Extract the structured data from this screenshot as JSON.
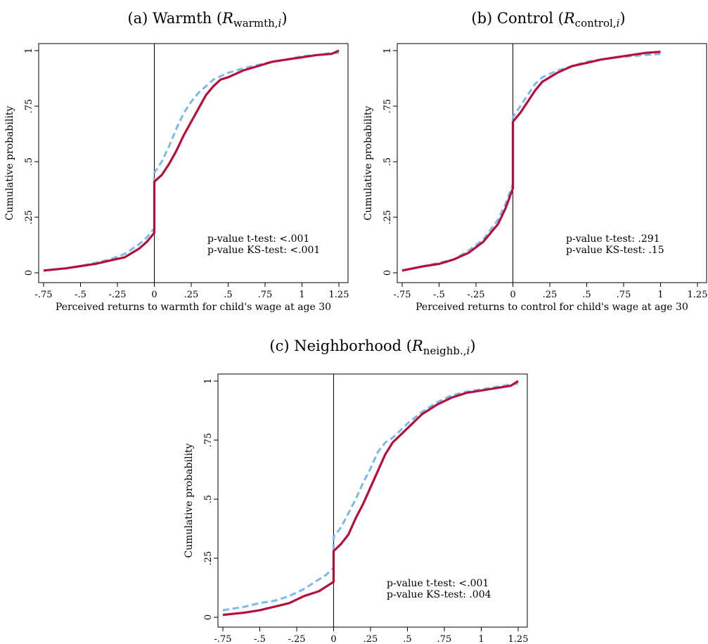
{
  "colors": {
    "treatment": "#b5103c",
    "control": "#7db9ee",
    "axis": "#000000"
  },
  "panels": [
    {
      "title": {
        "prefix": "(a) Warmth (",
        "sym": "R",
        "sub": "warmth,",
        "subi": "i",
        "suffix": ")"
      },
      "stats": [
        "p-value t-test: <.001",
        "p-value KS-test: <.001"
      ]
    },
    {
      "title": {
        "prefix": "(b) Control (",
        "sym": "R",
        "sub": "control,",
        "subi": "i",
        "suffix": ")"
      },
      "stats": [
        "p-value t-test: .291",
        "p-value KS-test: .15"
      ]
    },
    {
      "title": {
        "prefix": "(c) Neighborhood (",
        "sym": "R",
        "sub": "neighb.,",
        "subi": "i",
        "suffix": ")"
      },
      "stats": [
        "p-value t-test: <.001",
        "p-value KS-test: .004"
      ]
    }
  ],
  "chart_data": [
    {
      "type": "line",
      "xlabel": "Perceived returns to warmth for child's wage at age 30",
      "ylabel": "Cumulative probability",
      "xlim": [
        -0.75,
        1.25
      ],
      "ylim": [
        0,
        1
      ],
      "xticks": [
        -0.75,
        -0.5,
        -0.25,
        0,
        0.25,
        0.5,
        0.75,
        1,
        1.25
      ],
      "xtick_labels": [
        "-.75",
        "-.5",
        "-.25",
        "0",
        ".25",
        ".5",
        ".75",
        "1",
        "1.25"
      ],
      "yticks": [
        0,
        0.25,
        0.5,
        0.75,
        1
      ],
      "ytick_labels": [
        "0",
        ".25",
        ".5",
        ".75",
        "1"
      ],
      "vline": 0,
      "annotations": [
        "p-value t-test: <.001",
        "p-value KS-test: <.001"
      ],
      "series": [
        {
          "style": "solid",
          "color": "#b5103c",
          "x": [
            -0.75,
            -0.6,
            -0.5,
            -0.4,
            -0.3,
            -0.2,
            -0.1,
            -0.05,
            0,
            0,
            0.05,
            0.1,
            0.15,
            0.2,
            0.25,
            0.3,
            0.35,
            0.4,
            0.45,
            0.5,
            0.6,
            0.7,
            0.8,
            0.9,
            1.0,
            1.1,
            1.2,
            1.25
          ],
          "y": [
            0.01,
            0.02,
            0.03,
            0.04,
            0.055,
            0.07,
            0.11,
            0.14,
            0.18,
            0.41,
            0.44,
            0.49,
            0.55,
            0.62,
            0.68,
            0.74,
            0.8,
            0.84,
            0.87,
            0.88,
            0.91,
            0.93,
            0.95,
            0.96,
            0.97,
            0.98,
            0.985,
            1.0
          ]
        },
        {
          "style": "dashed",
          "color": "#7db9ee",
          "x": [
            -0.75,
            -0.6,
            -0.5,
            -0.4,
            -0.3,
            -0.2,
            -0.1,
            -0.05,
            0,
            0,
            0.05,
            0.1,
            0.15,
            0.2,
            0.25,
            0.3,
            0.35,
            0.4,
            0.5,
            0.6,
            0.7,
            0.8,
            0.9,
            1.0,
            1.1,
            1.2,
            1.25
          ],
          "y": [
            0.01,
            0.02,
            0.03,
            0.045,
            0.06,
            0.085,
            0.13,
            0.16,
            0.2,
            0.45,
            0.5,
            0.57,
            0.65,
            0.72,
            0.77,
            0.81,
            0.84,
            0.87,
            0.9,
            0.92,
            0.935,
            0.95,
            0.96,
            0.975,
            0.98,
            0.99,
            0.99
          ]
        }
      ]
    },
    {
      "type": "line",
      "xlabel": "Perceived returns to control for child's wage at age 30",
      "ylabel": "Cumulative probability",
      "xlim": [
        -0.75,
        1.25
      ],
      "ylim": [
        0,
        1
      ],
      "xticks": [
        -0.75,
        -0.5,
        -0.25,
        0,
        0.25,
        0.5,
        0.75,
        1,
        1.25
      ],
      "xtick_labels": [
        "-.75",
        "-.5",
        "-.25",
        "0",
        ".25",
        ".5",
        ".75",
        "1",
        "1.25"
      ],
      "yticks": [
        0,
        0.25,
        0.5,
        0.75,
        1
      ],
      "ytick_labels": [
        "0",
        ".25",
        ".5",
        ".75",
        "1"
      ],
      "vline": 0,
      "annotations": [
        "p-value t-test: .291",
        "p-value KS-test: .15"
      ],
      "series": [
        {
          "style": "solid",
          "color": "#b5103c",
          "x": [
            -0.75,
            -0.6,
            -0.5,
            -0.4,
            -0.3,
            -0.2,
            -0.1,
            -0.05,
            0,
            0,
            0.05,
            0.1,
            0.15,
            0.2,
            0.3,
            0.4,
            0.5,
            0.6,
            0.7,
            0.8,
            0.9,
            1.0
          ],
          "y": [
            0.01,
            0.03,
            0.04,
            0.06,
            0.09,
            0.14,
            0.22,
            0.29,
            0.38,
            0.68,
            0.72,
            0.77,
            0.82,
            0.86,
            0.9,
            0.93,
            0.945,
            0.96,
            0.97,
            0.98,
            0.99,
            0.995
          ]
        },
        {
          "style": "dashed",
          "color": "#7db9ee",
          "x": [
            -0.75,
            -0.6,
            -0.5,
            -0.4,
            -0.3,
            -0.2,
            -0.1,
            -0.05,
            0,
            0,
            0.05,
            0.1,
            0.15,
            0.2,
            0.3,
            0.4,
            0.5,
            0.6,
            0.7,
            0.8,
            0.9,
            1.0
          ],
          "y": [
            0.01,
            0.03,
            0.045,
            0.06,
            0.1,
            0.15,
            0.24,
            0.31,
            0.4,
            0.7,
            0.75,
            0.8,
            0.85,
            0.88,
            0.91,
            0.93,
            0.95,
            0.96,
            0.97,
            0.975,
            0.98,
            0.985
          ]
        }
      ]
    },
    {
      "type": "line",
      "xlabel": "Perceived returns to neighborhoods for child's wage at age 30",
      "ylabel": "Cumulative probability",
      "xlim": [
        -0.75,
        1.25
      ],
      "ylim": [
        0,
        1
      ],
      "xticks": [
        -0.75,
        -0.5,
        -0.25,
        0,
        0.25,
        0.5,
        0.75,
        1,
        1.25
      ],
      "xtick_labels": [
        "-.75",
        "-.5",
        "-.25",
        "0",
        ".25",
        ".5",
        ".75",
        "1",
        "1.25"
      ],
      "yticks": [
        0,
        0.25,
        0.5,
        0.75,
        1
      ],
      "ytick_labels": [
        "0",
        ".25",
        ".5",
        ".75",
        "1"
      ],
      "vline": 0,
      "annotations": [
        "p-value t-test: <.001",
        "p-value KS-test: .004"
      ],
      "series": [
        {
          "style": "solid",
          "color": "#b5103c",
          "x": [
            -0.75,
            -0.6,
            -0.5,
            -0.4,
            -0.3,
            -0.2,
            -0.1,
            -0.05,
            0,
            0,
            0.05,
            0.1,
            0.15,
            0.2,
            0.25,
            0.3,
            0.35,
            0.4,
            0.45,
            0.5,
            0.6,
            0.7,
            0.8,
            0.9,
            1.0,
            1.1,
            1.2,
            1.25
          ],
          "y": [
            0.01,
            0.02,
            0.03,
            0.045,
            0.06,
            0.09,
            0.11,
            0.13,
            0.15,
            0.28,
            0.31,
            0.35,
            0.42,
            0.48,
            0.55,
            0.62,
            0.69,
            0.74,
            0.77,
            0.8,
            0.86,
            0.9,
            0.93,
            0.95,
            0.96,
            0.97,
            0.98,
            1.0
          ]
        },
        {
          "style": "dashed",
          "color": "#7db9ee",
          "x": [
            -0.75,
            -0.6,
            -0.5,
            -0.4,
            -0.3,
            -0.2,
            -0.1,
            -0.05,
            0,
            0,
            0.05,
            0.1,
            0.15,
            0.2,
            0.25,
            0.3,
            0.35,
            0.4,
            0.45,
            0.5,
            0.6,
            0.7,
            0.8,
            0.9,
            1.0,
            1.1,
            1.2,
            1.25
          ],
          "y": [
            0.03,
            0.045,
            0.06,
            0.07,
            0.09,
            0.12,
            0.16,
            0.18,
            0.21,
            0.34,
            0.38,
            0.44,
            0.5,
            0.57,
            0.63,
            0.7,
            0.74,
            0.76,
            0.79,
            0.82,
            0.87,
            0.91,
            0.94,
            0.955,
            0.965,
            0.975,
            0.985,
            0.99
          ]
        }
      ]
    }
  ]
}
